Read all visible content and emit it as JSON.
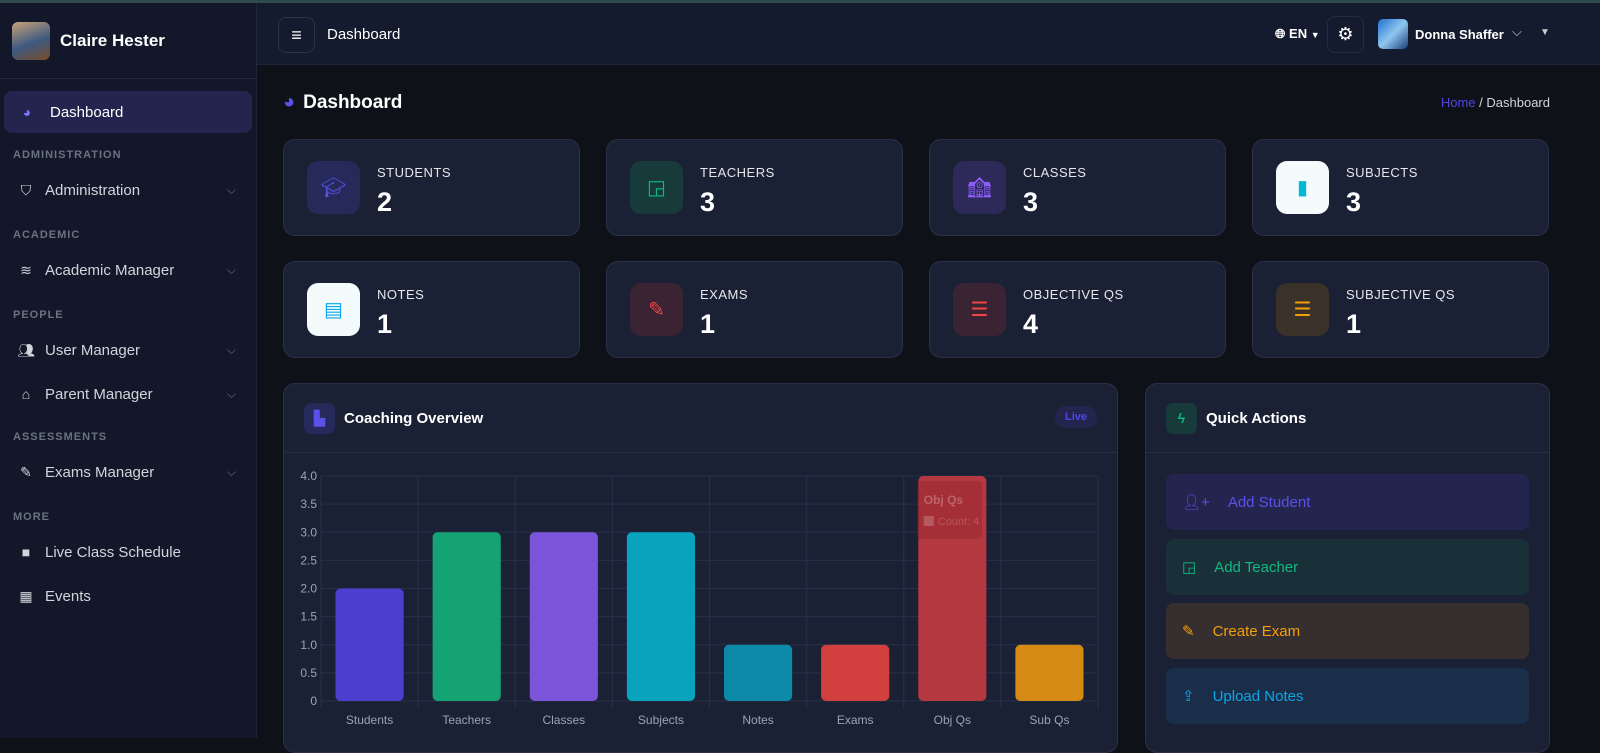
{
  "sidebar": {
    "brand": "Claire Hester",
    "active": "Dashboard",
    "sections": [
      {
        "title": "ADMINISTRATION",
        "items": [
          "Administration"
        ]
      },
      {
        "title": "ACADEMIC",
        "items": [
          "Academic Manager"
        ]
      },
      {
        "title": "PEOPLE",
        "items": [
          "User Manager",
          "Parent Manager"
        ]
      },
      {
        "title": "ASSESSMENTS",
        "items": [
          "Exams Manager"
        ]
      },
      {
        "title": "MORE",
        "items": [
          "Live Class Schedule",
          "Events"
        ]
      }
    ]
  },
  "topbar": {
    "title": "Dashboard",
    "lang": "EN",
    "user": "Donna Shaffer"
  },
  "page": {
    "title": "Dashboard",
    "breadcrumb_home": "Home",
    "breadcrumb_sep": "/",
    "breadcrumb_current": "Dashboard"
  },
  "stats": [
    {
      "label": "STUDENTS",
      "value": "2",
      "color": "#4f46e5"
    },
    {
      "label": "TEACHERS",
      "value": "3",
      "color": "#10b981"
    },
    {
      "label": "CLASSES",
      "value": "3",
      "color": "#8b5cf6"
    },
    {
      "label": "SUBJECTS",
      "value": "3",
      "color": "#06b6d4"
    },
    {
      "label": "NOTES",
      "value": "1",
      "color": "#0ea5e9"
    },
    {
      "label": "EXAMS",
      "value": "1",
      "color": "#ef4444"
    },
    {
      "label": "OBJECTIVE QS",
      "value": "4",
      "color": "#ef4444"
    },
    {
      "label": "SUBJECTIVE QS",
      "value": "1",
      "color": "#f59e0b"
    }
  ],
  "chart_panel": {
    "title": "Coaching Overview",
    "badge": "Live",
    "tooltip_title": "Obj Qs",
    "tooltip_body": "Count: 4"
  },
  "chart_data": {
    "type": "bar",
    "categories": [
      "Students",
      "Teachers",
      "Classes",
      "Subjects",
      "Notes",
      "Exams",
      "Obj Qs",
      "Sub Qs"
    ],
    "values": [
      2,
      3,
      3,
      3,
      1,
      1,
      4,
      1
    ],
    "colors": [
      "#4a3fcf",
      "#16a374",
      "#7b55d9",
      "#0aa3bd",
      "#0b89a6",
      "#d13f3f",
      "#b3383f",
      "#d48a14"
    ],
    "ylim": [
      0,
      4
    ],
    "yticks": [
      "0",
      "0.5",
      "1.0",
      "1.5",
      "2.0",
      "2.5",
      "3.0",
      "3.5",
      "4.0"
    ],
    "grid": true,
    "legend": "none"
  },
  "quick_actions": {
    "title": "Quick Actions",
    "items": [
      {
        "label": "Add Student",
        "color": "#5b50e8",
        "bg": "#24254f"
      },
      {
        "label": "Add Teacher",
        "color": "#10b981",
        "bg": "#1a3038"
      },
      {
        "label": "Create Exam",
        "color": "#f59e0b",
        "bg": "#362f30"
      },
      {
        "label": "Upload Notes",
        "color": "#0ea5e9",
        "bg": "#1a2e4a"
      }
    ]
  }
}
